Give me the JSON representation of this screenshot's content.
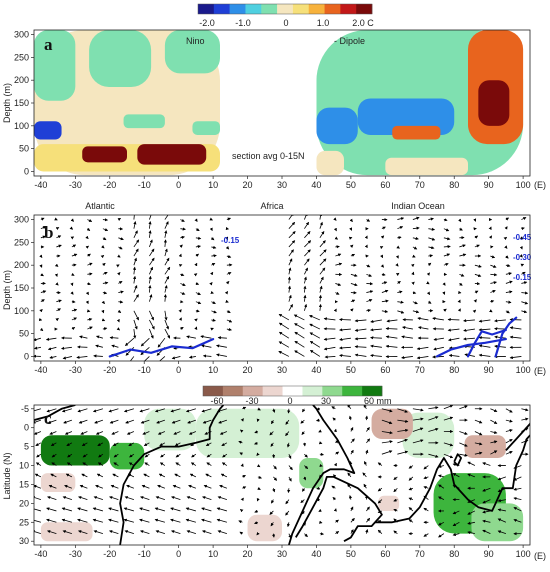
{
  "chart_data": [
    {
      "panel": "a",
      "type": "heatmap",
      "title": "",
      "annotations": [
        "Nino",
        "- Dipole",
        "section avg 0-15N"
      ],
      "xlabel": "(E)",
      "ylabel": "Depth (m)",
      "xticks": [
        -40,
        -30,
        -20,
        -10,
        0,
        10,
        20,
        30,
        40,
        50,
        60,
        70,
        80,
        90,
        100
      ],
      "yticks": [
        0,
        50,
        100,
        150,
        200,
        250,
        300
      ],
      "xlim": [
        -42,
        102
      ],
      "ylim": [
        310,
        -10
      ],
      "colorbar": {
        "ticks": [
          "-2.0",
          "-1.0",
          "0",
          "1.0",
          "2.0 C"
        ],
        "range": [
          -2.5,
          2.5
        ],
        "colors": [
          "#1a1a8c",
          "#1f3fd6",
          "#2e8fe8",
          "#4fd0e0",
          "#7fe0b0",
          "#f5e6bf",
          "#f6e07a",
          "#f7b23c",
          "#e8641e",
          "#c21818",
          "#7a0a0a"
        ]
      },
      "regions": [
        {
          "x": [
            -42,
            12
          ],
          "y": [
            -8,
            310
          ],
          "value": 0.0
        },
        {
          "x": [
            -42,
            12
          ],
          "y": [
            0,
            60
          ],
          "value": 0.6
        },
        {
          "x": [
            -28,
            -15
          ],
          "y": [
            20,
            55
          ],
          "value": 2.2
        },
        {
          "x": [
            -12,
            8
          ],
          "y": [
            15,
            60
          ],
          "value": 2.3
        },
        {
          "x": [
            -42,
            -34
          ],
          "y": [
            70,
            110
          ],
          "value": -1.8
        },
        {
          "x": [
            -42,
            -30
          ],
          "y": [
            155,
            310
          ],
          "value": -0.5
        },
        {
          "x": [
            -26,
            -8
          ],
          "y": [
            185,
            310
          ],
          "value": -0.5
        },
        {
          "x": [
            -4,
            12
          ],
          "y": [
            215,
            310
          ],
          "value": -0.5
        },
        {
          "x": [
            -16,
            -4
          ],
          "y": [
            95,
            125
          ],
          "value": -0.6
        },
        {
          "x": [
            4,
            12
          ],
          "y": [
            80,
            110
          ],
          "value": -0.5
        },
        {
          "x": [
            40,
            100
          ],
          "y": [
            -8,
            310
          ],
          "value": -0.6
        },
        {
          "x": [
            40,
            52
          ],
          "y": [
            60,
            140
          ],
          "value": -1.5
        },
        {
          "x": [
            52,
            80
          ],
          "y": [
            80,
            160
          ],
          "value": -1.2
        },
        {
          "x": [
            62,
            76
          ],
          "y": [
            70,
            100
          ],
          "value": 1.5
        },
        {
          "x": [
            84,
            100
          ],
          "y": [
            60,
            310
          ],
          "value": 1.5
        },
        {
          "x": [
            87,
            96
          ],
          "y": [
            100,
            200
          ],
          "value": 2.2
        },
        {
          "x": [
            40,
            48
          ],
          "y": [
            -8,
            45
          ],
          "value": 0.0
        },
        {
          "x": [
            60,
            84
          ],
          "y": [
            -8,
            30
          ],
          "value": 0.0
        }
      ]
    },
    {
      "panel": "b",
      "type": "quiver",
      "title": "",
      "annotations": [
        "Atlantic",
        "Africa",
        "Indian Ocean"
      ],
      "xlabel": "(E)",
      "ylabel": "Depth (m)",
      "xticks": [
        -40,
        -30,
        -20,
        -10,
        0,
        10,
        20,
        30,
        40,
        50,
        60,
        70,
        80,
        90,
        100
      ],
      "yticks": [
        0,
        50,
        100,
        150,
        200,
        250,
        300
      ],
      "xlim": [
        -42,
        102
      ],
      "ylim": [
        310,
        -10
      ],
      "contour_color": "#1a2bd0",
      "contour_labels": [
        "-0.15",
        "-0.45",
        "-0.30",
        "-0.15"
      ],
      "contours": [
        {
          "label": "-0.15",
          "points": [
            [
              -20,
              0
            ],
            [
              -14,
              15
            ],
            [
              -8,
              8
            ],
            [
              -2,
              22
            ],
            [
              4,
              18
            ],
            [
              10,
              38
            ]
          ]
        },
        {
          "label": "-0.45",
          "points": [
            [
              75,
              0
            ],
            [
              79,
              15
            ],
            [
              84,
              25
            ],
            [
              89,
              30
            ],
            [
              95,
              38
            ]
          ]
        },
        {
          "label": "-0.30",
          "points": [
            [
              84,
              0
            ],
            [
              86,
              30
            ],
            [
              88,
              55
            ],
            [
              91,
              48
            ],
            [
              95,
              58
            ]
          ]
        },
        {
          "label": "-0.15",
          "points": [
            [
              92,
              0
            ],
            [
              93,
              25
            ],
            [
              94,
              50
            ],
            [
              96,
              72
            ],
            [
              98,
              85
            ]
          ]
        }
      ]
    },
    {
      "panel": "c",
      "type": "heatmap",
      "title": "",
      "xlabel": "(E)",
      "ylabel": "Latitude (N)",
      "xticks": [
        -40,
        -30,
        -20,
        -10,
        0,
        10,
        20,
        30,
        40,
        50,
        60,
        70,
        80,
        90,
        100
      ],
      "yticks": [
        -5,
        0,
        5,
        10,
        15,
        20,
        25,
        30
      ],
      "xlim": [
        -42,
        102
      ],
      "ylim": [
        -6,
        31
      ],
      "colorbar": {
        "ticks": [
          "-60",
          "-30",
          "0",
          "30",
          "60 mm"
        ],
        "range": [
          -70,
          70
        ],
        "colors": [
          "#8a5a4a",
          "#b0806c",
          "#d4aca0",
          "#ecd6d0",
          "#ffffff",
          "#d4f0d4",
          "#8fd98f",
          "#3db53d",
          "#117a11"
        ]
      },
      "regions": [
        {
          "x": [
            -40,
            -20
          ],
          "y": [
            2,
            10
          ],
          "value": 55
        },
        {
          "x": [
            -20,
            -10
          ],
          "y": [
            4,
            11
          ],
          "value": 40
        },
        {
          "x": [
            -10,
            5
          ],
          "y": [
            -5,
            6
          ],
          "value": 20
        },
        {
          "x": [
            5,
            35
          ],
          "y": [
            -5,
            8
          ],
          "value": 15
        },
        {
          "x": [
            35,
            42
          ],
          "y": [
            8,
            16
          ],
          "value": 30
        },
        {
          "x": [
            74,
            95
          ],
          "y": [
            12,
            28
          ],
          "value": 45
        },
        {
          "x": [
            85,
            100
          ],
          "y": [
            20,
            30
          ],
          "value": 35
        },
        {
          "x": [
            65,
            80
          ],
          "y": [
            -4,
            8
          ],
          "value": 20
        },
        {
          "x": [
            56,
            68
          ],
          "y": [
            -5,
            3
          ],
          "value": -25
        },
        {
          "x": [
            -40,
            -25
          ],
          "y": [
            25,
            30
          ],
          "value": -20
        },
        {
          "x": [
            20,
            30
          ],
          "y": [
            23,
            30
          ],
          "value": -15
        },
        {
          "x": [
            83,
            95
          ],
          "y": [
            2,
            8
          ],
          "value": -25
        },
        {
          "x": [
            -40,
            -30
          ],
          "y": [
            12,
            17
          ],
          "value": -15
        },
        {
          "x": [
            58,
            64
          ],
          "y": [
            18,
            22
          ],
          "value": -15
        }
      ]
    }
  ]
}
